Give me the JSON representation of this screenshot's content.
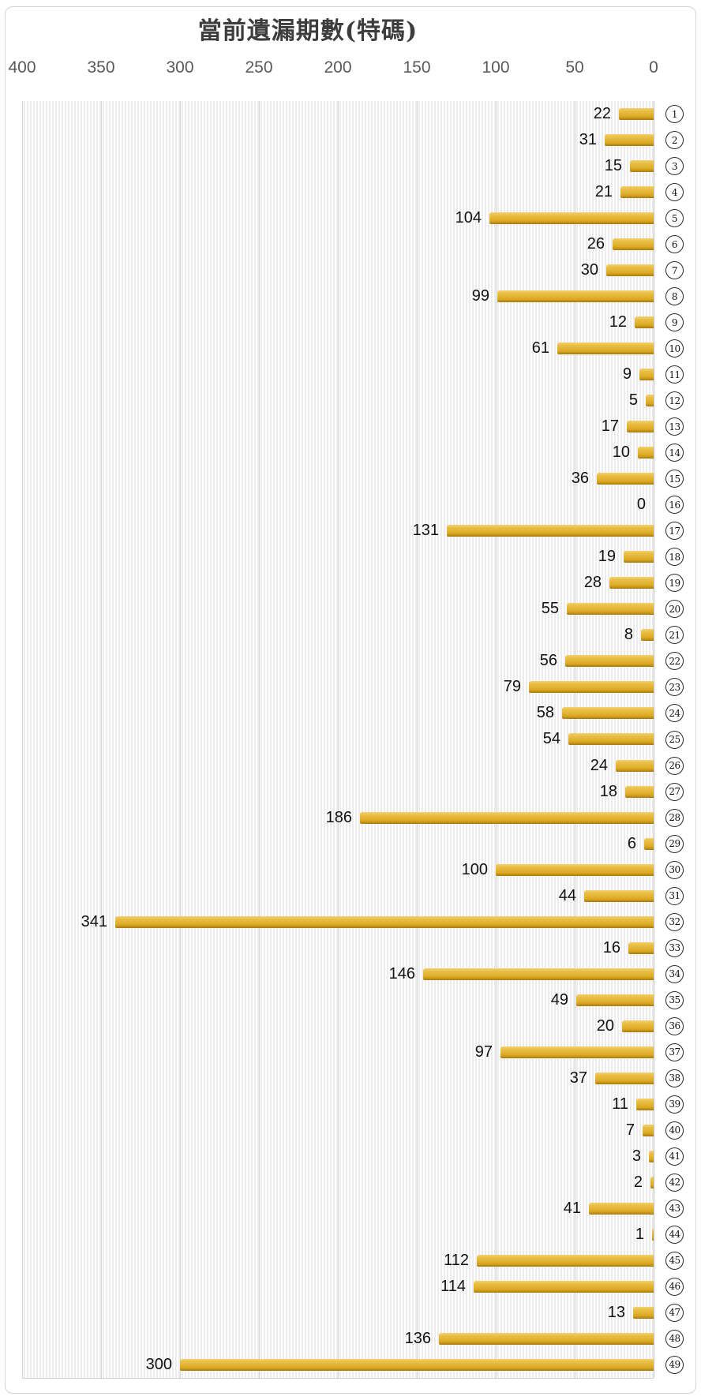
{
  "chart": {
    "title": "當前遺漏期數(特碼)"
  },
  "chart_data": {
    "type": "bar",
    "orientation": "horizontal",
    "title": "當前遺漏期數(特碼)",
    "categories": [
      1,
      2,
      3,
      4,
      5,
      6,
      7,
      8,
      9,
      10,
      11,
      12,
      13,
      14,
      15,
      16,
      17,
      18,
      19,
      20,
      21,
      22,
      23,
      24,
      25,
      26,
      27,
      28,
      29,
      30,
      31,
      32,
      33,
      34,
      35,
      36,
      37,
      38,
      39,
      40,
      41,
      42,
      43,
      44,
      45,
      46,
      47,
      48,
      49
    ],
    "category_style": "circled-number",
    "values": [
      22,
      31,
      15,
      21,
      104,
      26,
      30,
      99,
      12,
      61,
      9,
      5,
      17,
      10,
      36,
      0,
      131,
      19,
      28,
      55,
      8,
      56,
      79,
      58,
      54,
      24,
      18,
      186,
      6,
      100,
      44,
      341,
      16,
      146,
      49,
      20,
      97,
      37,
      11,
      7,
      3,
      2,
      41,
      1,
      112,
      114,
      13,
      136,
      300
    ],
    "value_labels_shown": true,
    "xlabel": "",
    "ylabel": "",
    "x_axis": {
      "position": "top",
      "reversed": true,
      "range": [
        0,
        400
      ],
      "tick_interval": 50,
      "ticks": [
        400,
        350,
        300,
        250,
        200,
        150,
        100,
        50,
        0
      ]
    },
    "grid": true,
    "legend": false,
    "colors": {
      "bar_highlight": "#f3d06b",
      "bar_main": "#e2b231",
      "bar_shadow": "#a9790f",
      "grid_line": "#d4d4d4",
      "plot_stripe": "#ececec",
      "title_text": "#3d3d3d",
      "axis_text": "#595959",
      "value_text": "#121212",
      "category_circle_border": "#2b2b2b"
    }
  }
}
